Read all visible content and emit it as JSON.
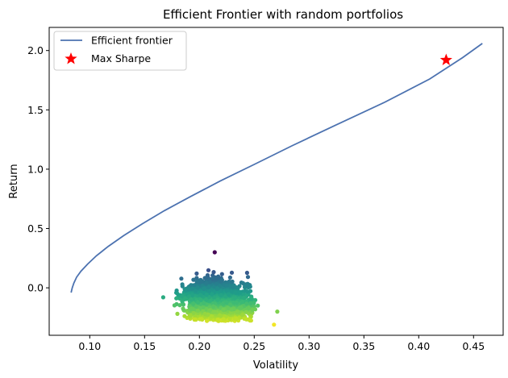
{
  "chart_data": {
    "type": "scatter",
    "title": "Efficient Frontier with random portfolios",
    "xlabel": "Volatility",
    "ylabel": "Return",
    "xlim": [
      0.063,
      0.477
    ],
    "ylim": [
      -0.4,
      2.195
    ],
    "xticks": [
      "0.10",
      "0.15",
      "0.20",
      "0.25",
      "0.30",
      "0.35",
      "0.40",
      "0.45"
    ],
    "xtick_values": [
      0.1,
      0.15,
      0.2,
      0.25,
      0.3,
      0.35,
      0.4,
      0.45
    ],
    "yticks": [
      "0.0",
      "0.5",
      "1.0",
      "1.5",
      "2.0"
    ],
    "ytick_values": [
      0.0,
      0.5,
      1.0,
      1.5,
      2.0
    ],
    "grid": false,
    "legend_position": "top-left",
    "legend": [
      "Efficient frontier",
      "Max Sharpe"
    ],
    "frontier": {
      "name": "Efficient frontier",
      "color": "#4c72b0",
      "x": [
        0.083,
        0.084,
        0.0855,
        0.088,
        0.092,
        0.098,
        0.106,
        0.117,
        0.131,
        0.148,
        0.168,
        0.192,
        0.219,
        0.25,
        0.285,
        0.324,
        0.368,
        0.41,
        0.44,
        0.458
      ],
      "y": [
        -0.04,
        0.0,
        0.04,
        0.09,
        0.14,
        0.2,
        0.27,
        0.35,
        0.44,
        0.54,
        0.65,
        0.77,
        0.9,
        1.04,
        1.2,
        1.37,
        1.56,
        1.76,
        1.94,
        2.06
      ]
    },
    "max_sharpe": {
      "name": "Max Sharpe",
      "x": 0.425,
      "y": 1.92,
      "color": "#ff0000"
    },
    "random_portfolios": {
      "colormap": "viridis",
      "approx_count": 2500,
      "x_range": [
        0.165,
        0.272
      ],
      "y_range": [
        -0.32,
        0.3
      ],
      "center": [
        0.215,
        -0.1
      ],
      "notable_points": [
        {
          "x": 0.214,
          "y": 0.3
        },
        {
          "x": 0.268,
          "y": -0.31
        },
        {
          "x": 0.271,
          "y": -0.2
        },
        {
          "x": 0.167,
          "y": -0.08
        }
      ]
    }
  }
}
